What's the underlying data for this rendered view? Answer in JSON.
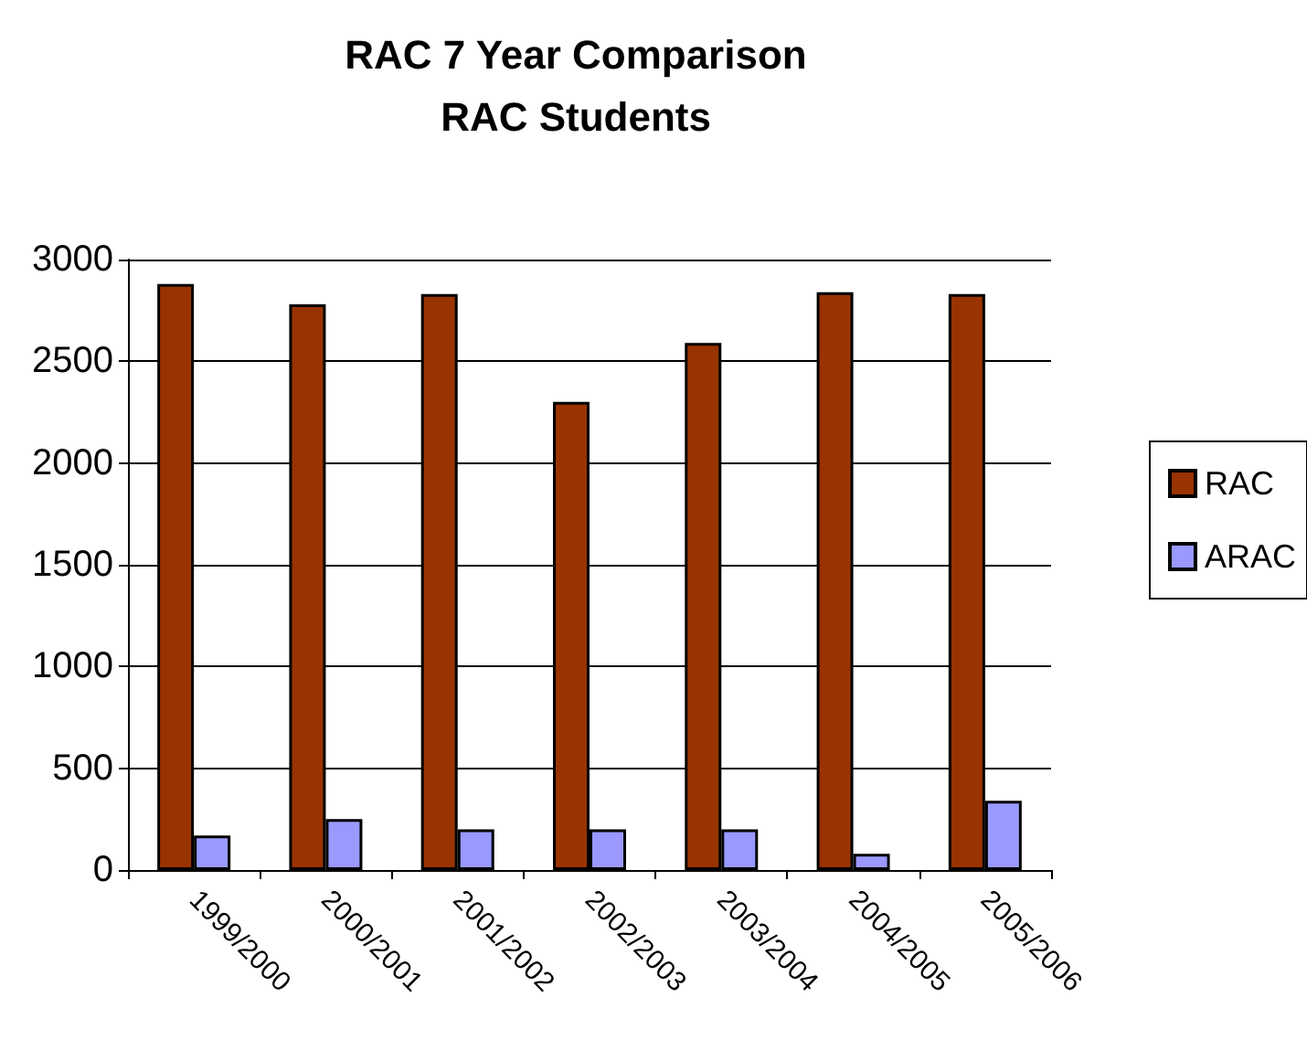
{
  "chart_data": {
    "type": "bar",
    "title": "RAC 7 Year Comparison\nRAC Students",
    "categories": [
      "1999/2000",
      "2000/2001",
      "2001/2002",
      "2002/2003",
      "2003/2004",
      "2004/2005",
      "2005/2006"
    ],
    "series": [
      {
        "name": "RAC",
        "color": "#993300",
        "values": [
          2880,
          2780,
          2830,
          2300,
          2590,
          2840,
          2830
        ]
      },
      {
        "name": "ARAC",
        "color": "#9999ff",
        "values": [
          170,
          250,
          200,
          200,
          200,
          80,
          340
        ]
      }
    ],
    "ylim": [
      0,
      3000
    ],
    "yticks": [
      0,
      500,
      1000,
      1500,
      2000,
      2500,
      3000
    ],
    "grid": "y",
    "legend": "right"
  }
}
